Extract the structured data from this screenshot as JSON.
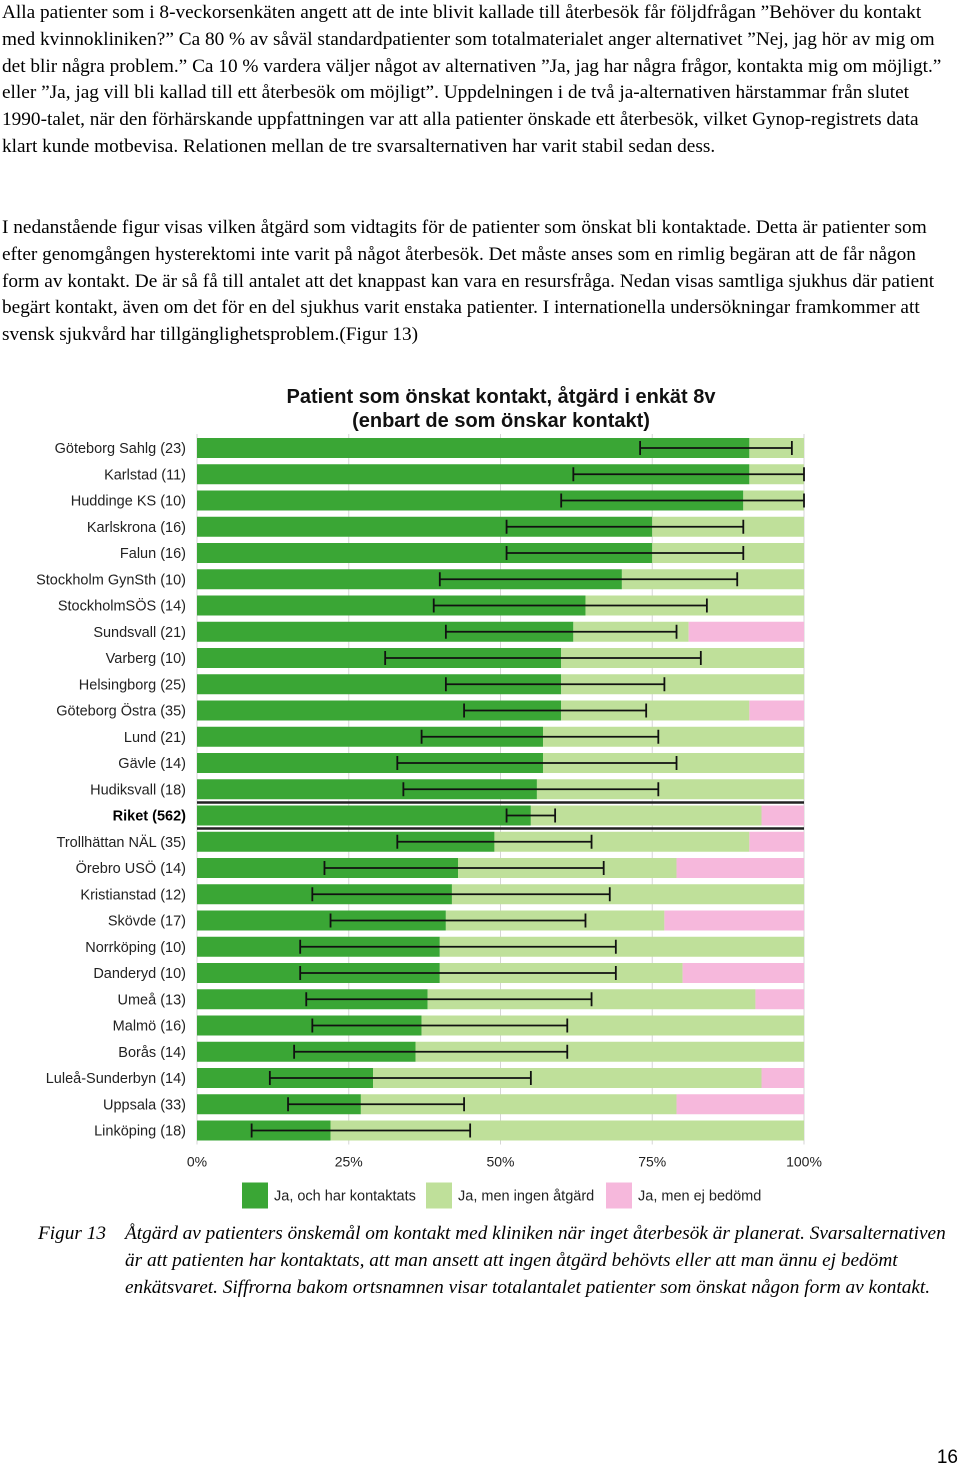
{
  "paragraphs": [
    "Alla patienter som i 8-veckorsenkäten angett att de inte blivit kallade till återbesök får följdfrågan ”Behöver du kontakt med kvinnokliniken?” Ca 80 % av såväl standardpatienter som totalmaterialet anger alternativet ”Nej, jag hör av mig om det blir några problem.” Ca 10 % vardera väljer något av alternativen ”Ja, jag har några frågor, kontakta mig om möjligt.” eller ”Ja, jag vill bli kallad till ett återbesök om möjligt”. Uppdelningen i de två ja-alternativen härstammar från slutet 1990-talet, när den förhärskande uppfattningen var att alla patienter önskade ett återbesök, vilket Gynop-registrets data klart kunde motbevisa. Relationen mellan de tre svarsalternativen har varit stabil sedan dess.",
    "I nedanstående figur visas vilken åtgärd som vidtagits för de patienter som önskat bli kontaktade. Detta är patienter som efter genomgången hysterektomi inte varit på något återbesök. Det måste anses som en rimlig begäran att de får någon form av kontakt. De är så få till antalet att det knappast kan vara en resursfråga. Nedan visas samtliga sjukhus där patient begärt kontakt, även om det för en del sjukhus varit enstaka patienter. I internationella undersökningar framkommer att svensk sjukvård har tillgänglighetsproblem.(Figur 13)"
  ],
  "caption": {
    "label": "Figur 13",
    "text": "Åtgärd av patienters önskemål om kontakt med kliniken när inget återbesök är planerat. Svarsalternativen är att patienten har kontaktats, att man ansett att ingen åtgärd behövts eller att man ännu ej bedömt enkätsvaret. Siffrorna bakom ortsnamnen visar totalantalet patienter som önskat någon form av kontakt."
  },
  "page_number": "16",
  "chart_data": {
    "type": "bar",
    "orientation": "horizontal",
    "stacked": true,
    "title": "Patient som önskat kontakt, åtgärd i enkät 8v",
    "subtitle": "(enbart de som önskar kontakt)",
    "xlim": [
      0,
      100
    ],
    "x_ticks": [
      "0%",
      "25%",
      "50%",
      "75%",
      "100%"
    ],
    "categories": [
      "Göteborg Sahlg (23)",
      "Karlstad (11)",
      "Huddinge KS (10)",
      "Karlskrona (16)",
      "Falun (16)",
      "Stockholm GynSth (10)",
      "StockholmSÖS (14)",
      "Sundsvall (21)",
      "Varberg (10)",
      "Helsingborg (25)",
      "Göteborg Östra (35)",
      "Lund (21)",
      "Gävle (14)",
      "Hudiksvall (18)",
      "Riket (562)",
      "Trollhättan NÄL (35)",
      "Örebro USÖ (14)",
      "Kristianstad (12)",
      "Skövde (17)",
      "Norrköping (10)",
      "Danderyd (10)",
      "Umeå (13)",
      "Malmö (16)",
      "Borås (14)",
      "Luleå-Sunderbyn (14)",
      "Uppsala (33)",
      "Linköping (18)"
    ],
    "highlight_category": "Riket (562)",
    "series": [
      {
        "name": "Ja, och har kontaktats",
        "color": "#3aa635",
        "values": [
          91,
          91,
          90,
          75,
          75,
          70,
          64,
          62,
          60,
          60,
          60,
          57,
          57,
          56,
          55,
          49,
          43,
          42,
          41,
          40,
          40,
          38,
          37,
          36,
          29,
          27,
          22
        ]
      },
      {
        "name": "Ja, men ingen åtgärd",
        "color": "#bfe09a",
        "values": [
          9,
          9,
          10,
          25,
          25,
          30,
          36,
          19,
          40,
          40,
          31,
          43,
          43,
          44,
          38,
          42,
          36,
          58,
          36,
          60,
          40,
          54,
          63,
          64,
          64,
          52,
          78
        ]
      },
      {
        "name": "Ja, men ej bedömd",
        "color": "#f6b8dc",
        "values": [
          0,
          0,
          0,
          0,
          0,
          0,
          0,
          19,
          0,
          0,
          9,
          0,
          0,
          0,
          7,
          9,
          21,
          0,
          23,
          0,
          20,
          8,
          0,
          0,
          7,
          21,
          0
        ]
      }
    ],
    "error_bars": {
      "series": "Ja, och har kontaktats",
      "low": [
        73,
        62,
        60,
        51,
        51,
        40,
        39,
        41,
        31,
        41,
        44,
        37,
        33,
        34,
        51,
        33,
        21,
        19,
        22,
        17,
        17,
        18,
        19,
        16,
        12,
        15,
        9
      ],
      "high": [
        98,
        100,
        100,
        90,
        90,
        89,
        84,
        79,
        83,
        77,
        74,
        76,
        79,
        76,
        59,
        65,
        67,
        68,
        64,
        69,
        69,
        65,
        61,
        61,
        55,
        44,
        45
      ]
    },
    "legend_position": "bottom"
  }
}
